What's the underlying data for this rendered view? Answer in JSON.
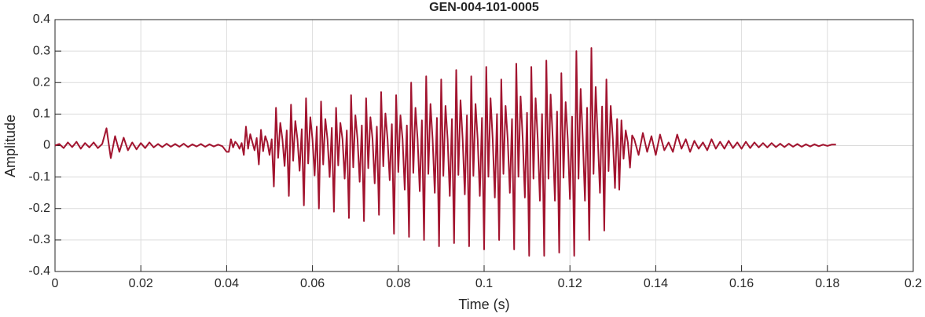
{
  "chart_data": {
    "type": "line",
    "title": "GEN-004-101-0005",
    "x_label": "Time (s)",
    "y_label": "Amplitude",
    "color": "#a2142f",
    "grid": true,
    "xlim": [
      0,
      0.2
    ],
    "xticks": [
      0,
      0.02,
      0.04,
      0.06,
      0.08,
      0.1,
      0.12,
      0.14,
      0.16,
      0.18,
      0.2
    ],
    "ylim": [
      -0.4,
      0.4
    ],
    "yticks": [
      -0.4,
      -0.3,
      -0.2,
      -0.1,
      0,
      0.1,
      0.2,
      0.3,
      0.4
    ],
    "x": [
      0,
      0.001,
      0.002,
      0.003,
      0.004,
      0.005,
      0.006,
      0.007,
      0.008,
      0.009,
      0.01,
      0.011,
      0.012,
      0.013,
      0.014,
      0.015,
      0.016,
      0.017,
      0.018,
      0.019,
      0.02,
      0.021,
      0.022,
      0.023,
      0.024,
      0.025,
      0.026,
      0.027,
      0.028,
      0.029,
      0.03,
      0.031,
      0.032,
      0.033,
      0.034,
      0.035,
      0.036,
      0.037,
      0.038,
      0.039,
      0.04,
      0.0405,
      0.041,
      0.0415,
      0.042,
      0.0425,
      0.043,
      0.0435,
      0.044,
      0.0445,
      0.045,
      0.0455,
      0.046,
      0.0465,
      0.047,
      0.0475,
      0.048,
      0.0485,
      0.049,
      0.0495,
      0.05,
      0.0505,
      0.051,
      0.0515,
      0.052,
      0.0525,
      0.053,
      0.0535,
      0.054,
      0.0545,
      0.055,
      0.0555,
      0.056,
      0.0565,
      0.057,
      0.0575,
      0.058,
      0.0585,
      0.059,
      0.0595,
      0.06,
      0.0605,
      0.061,
      0.0615,
      0.062,
      0.0625,
      0.063,
      0.0635,
      0.064,
      0.0645,
      0.065,
      0.0655,
      0.066,
      0.0665,
      0.067,
      0.0675,
      0.068,
      0.0685,
      0.069,
      0.0695,
      0.07,
      0.0705,
      0.071,
      0.0715,
      0.072,
      0.0725,
      0.073,
      0.0735,
      0.074,
      0.0745,
      0.075,
      0.0755,
      0.076,
      0.0765,
      0.077,
      0.0775,
      0.078,
      0.0785,
      0.079,
      0.0795,
      0.08,
      0.0805,
      0.081,
      0.0815,
      0.082,
      0.0825,
      0.083,
      0.0835,
      0.084,
      0.0845,
      0.085,
      0.0855,
      0.086,
      0.0865,
      0.087,
      0.0875,
      0.088,
      0.0885,
      0.089,
      0.0895,
      0.09,
      0.0905,
      0.091,
      0.0915,
      0.092,
      0.0925,
      0.093,
      0.0935,
      0.094,
      0.0945,
      0.095,
      0.0955,
      0.096,
      0.0965,
      0.097,
      0.0975,
      0.098,
      0.0985,
      0.099,
      0.0995,
      0.1,
      0.1005,
      0.101,
      0.1015,
      0.102,
      0.1025,
      0.103,
      0.1035,
      0.104,
      0.1045,
      0.105,
      0.1055,
      0.106,
      0.1065,
      0.107,
      0.1075,
      0.108,
      0.1085,
      0.109,
      0.1095,
      0.11,
      0.1105,
      0.111,
      0.1115,
      0.112,
      0.1125,
      0.113,
      0.1135,
      0.114,
      0.1145,
      0.115,
      0.1155,
      0.116,
      0.1165,
      0.117,
      0.1175,
      0.118,
      0.1185,
      0.119,
      0.1195,
      0.12,
      0.1205,
      0.121,
      0.1215,
      0.122,
      0.1225,
      0.123,
      0.1235,
      0.124,
      0.1245,
      0.125,
      0.1255,
      0.126,
      0.1265,
      0.127,
      0.1275,
      0.128,
      0.1285,
      0.129,
      0.1295,
      0.13,
      0.1305,
      0.131,
      0.1315,
      0.132,
      0.1325,
      0.133,
      0.1335,
      0.134,
      0.1345,
      0.135,
      0.136,
      0.137,
      0.138,
      0.139,
      0.14,
      0.141,
      0.142,
      0.143,
      0.144,
      0.145,
      0.146,
      0.147,
      0.148,
      0.149,
      0.15,
      0.151,
      0.152,
      0.153,
      0.154,
      0.155,
      0.156,
      0.157,
      0.158,
      0.159,
      0.16,
      0.161,
      0.162,
      0.163,
      0.164,
      0.165,
      0.166,
      0.167,
      0.168,
      0.169,
      0.17,
      0.171,
      0.172,
      0.173,
      0.174,
      0.175,
      0.176,
      0.177,
      0.178,
      0.179,
      0.18,
      0.181,
      0.182
    ],
    "values": [
      0,
      0.005,
      -0.008,
      0.01,
      -0.005,
      0.012,
      -0.01,
      0.008,
      -0.006,
      0.01,
      -0.008,
      0.005,
      0.055,
      -0.04,
      0.03,
      -0.02,
      0.025,
      -0.015,
      0.01,
      -0.012,
      0.008,
      -0.008,
      0.01,
      -0.006,
      0.005,
      -0.005,
      0.006,
      -0.004,
      0.005,
      -0.004,
      0.006,
      -0.005,
      0.004,
      -0.003,
      0.005,
      -0.004,
      0.004,
      -0.003,
      0.003,
      -0.002,
      -0.02,
      -0.02,
      0.02,
      -0.006,
      0.012,
      0.004,
      -0.01,
      0.008,
      -0.03,
      0.06,
      -0.01,
      0.036,
      0.01,
      -0.015,
      0.024,
      -0.06,
      0.05,
      -0.018,
      0.03,
      0.01,
      -0.03,
      0.02,
      -0.13,
      0.12,
      -0.039,
      0.072,
      0.02,
      -0.065,
      0.048,
      -0.16,
      0.13,
      -0.048,
      0.078,
      0.02,
      -0.08,
      0.052,
      -0.19,
      0.15,
      -0.057,
      0.09,
      0.02,
      -0.095,
      0.06,
      -0.2,
      0.14,
      -0.06,
      0.084,
      0.02,
      -0.1,
      0.056,
      -0.21,
      0.12,
      -0.063,
      0.072,
      0.02,
      -0.105,
      0.048,
      -0.23,
      0.16,
      -0.069,
      0.096,
      0.02,
      -0.115,
      0.064,
      -0.24,
      0.15,
      -0.072,
      0.09,
      0.02,
      -0.12,
      0.06,
      -0.22,
      0.17,
      -0.066,
      0.102,
      0.02,
      -0.11,
      0.068,
      -0.28,
      0.16,
      -0.084,
      0.096,
      0.02,
      -0.14,
      0.064,
      -0.29,
      0.2,
      -0.087,
      0.12,
      0.02,
      -0.145,
      0.08,
      -0.3,
      0.22,
      -0.09,
      0.132,
      0.02,
      -0.15,
      0.088,
      -0.32,
      0.21,
      -0.096,
      0.126,
      0.02,
      -0.16,
      0.084,
      -0.31,
      0.24,
      -0.093,
      0.144,
      0.02,
      -0.155,
      0.096,
      -0.32,
      0.22,
      -0.096,
      0.132,
      0.02,
      -0.16,
      0.088,
      -0.33,
      0.25,
      -0.099,
      0.15,
      0.02,
      -0.165,
      0.1,
      -0.3,
      0.21,
      -0.09,
      0.126,
      0.02,
      -0.15,
      0.084,
      -0.33,
      0.26,
      -0.099,
      0.156,
      0.02,
      -0.165,
      0.104,
      -0.35,
      0.25,
      -0.105,
      0.15,
      0.02,
      -0.175,
      0.1,
      -0.35,
      0.27,
      -0.105,
      0.162,
      0.02,
      -0.175,
      0.108,
      -0.34,
      0.23,
      -0.102,
      0.138,
      0.02,
      -0.17,
      0.092,
      -0.35,
      0.3,
      -0.105,
      0.18,
      0.02,
      -0.175,
      0.12,
      -0.3,
      0.31,
      -0.09,
      0.186,
      0.02,
      -0.15,
      0.124,
      -0.27,
      0.21,
      -0.081,
      0.126,
      0.02,
      -0.135,
      0.084,
      -0.14,
      0.08,
      -0.042,
      0.048,
      0.01,
      -0.07,
      0.032,
      0.02,
      -0.03,
      0.04,
      -0.02,
      0.03,
      -0.03,
      0.035,
      -0.015,
      0.01,
      -0.02,
      0.035,
      -0.01,
      0.02,
      -0.02,
      0.015,
      -0.01,
      0.01,
      -0.015,
      0.02,
      -0.01,
      0.012,
      -0.01,
      0.015,
      -0.008,
      0.01,
      -0.01,
      0.012,
      -0.008,
      0.01,
      -0.006,
      0.008,
      -0.006,
      0.008,
      -0.005,
      0.006,
      -0.005,
      0.006,
      -0.004,
      0.005,
      -0.004,
      0.004,
      -0.003,
      0.004,
      -0.002,
      0.003,
      -0.001,
      0.003,
      0.003
    ]
  }
}
